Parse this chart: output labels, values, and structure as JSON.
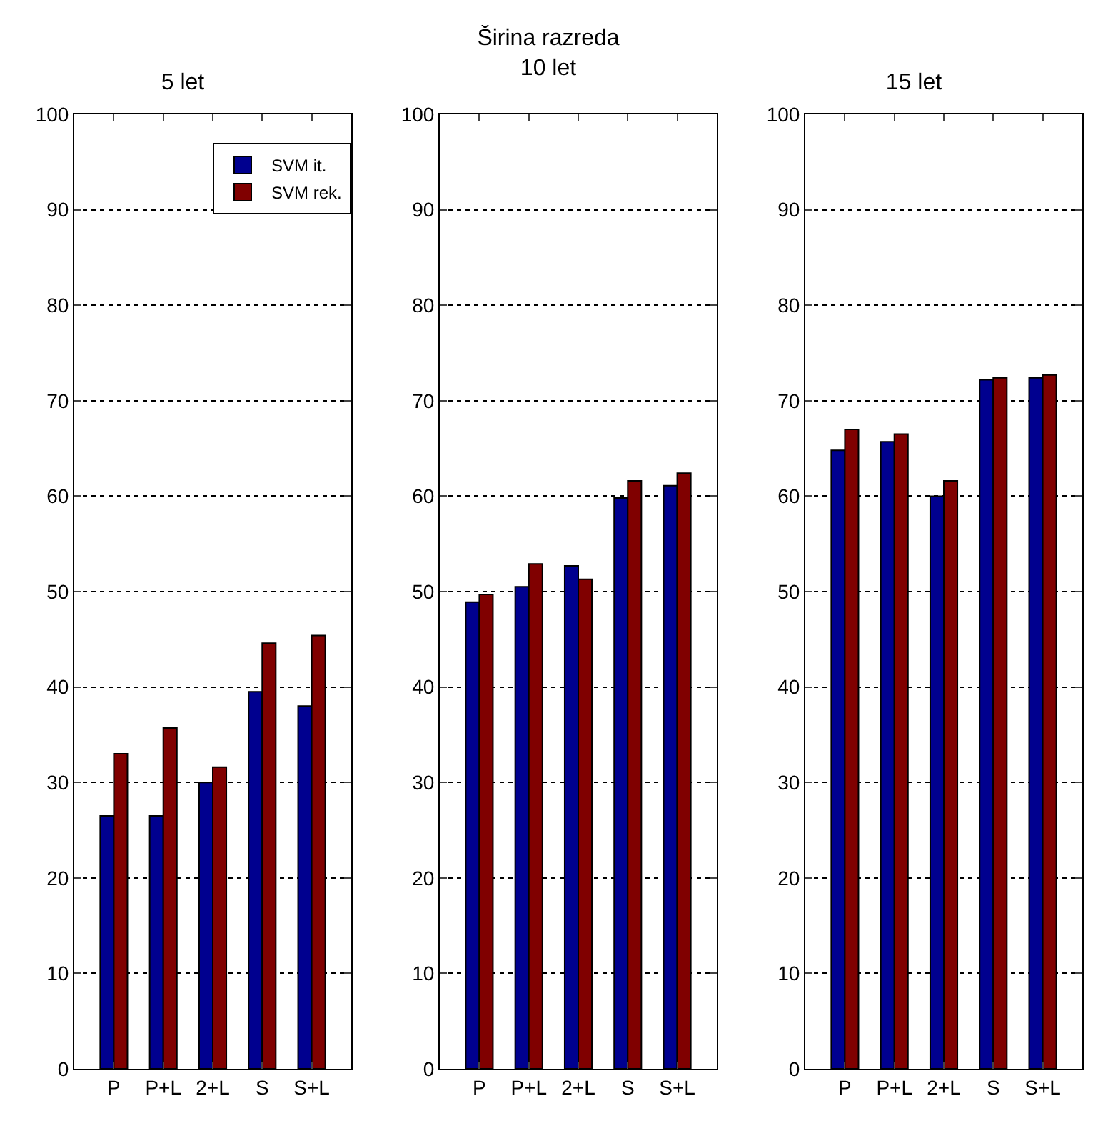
{
  "chart_data": [
    {
      "type": "bar",
      "title": "5 let",
      "categories": [
        "P",
        "P+L",
        "2+L",
        "S",
        "S+L"
      ],
      "series": [
        {
          "name": "SVM it.",
          "color": "#00008f",
          "values": [
            26.5,
            26.5,
            30,
            39.5,
            38
          ]
        },
        {
          "name": "SVM rek.",
          "color": "#800000",
          "values": [
            33,
            35.7,
            31.6,
            44.6,
            45.4
          ]
        }
      ],
      "ylim": [
        0,
        100
      ],
      "yticks": [
        0,
        10,
        20,
        30,
        40,
        50,
        60,
        70,
        80,
        90,
        100
      ],
      "grid": "y",
      "legend": "top right"
    },
    {
      "type": "bar",
      "title": "Širina razreda",
      "subtitle": "10 let",
      "categories": [
        "P",
        "P+L",
        "2+L",
        "S",
        "S+L"
      ],
      "series": [
        {
          "color": "#00008f",
          "values": [
            48.9,
            50.5,
            52.7,
            59.8,
            61.1
          ]
        },
        {
          "color": "#800000",
          "values": [
            49.7,
            52.9,
            51.3,
            61.6,
            62.4
          ]
        }
      ],
      "ylim": [
        0,
        100
      ],
      "yticks": [
        0,
        10,
        20,
        30,
        40,
        50,
        60,
        70,
        80,
        90,
        100
      ],
      "grid": "y"
    },
    {
      "type": "bar",
      "title": "15 let",
      "categories": [
        "P",
        "P+L",
        "2+L",
        "S",
        "S+L"
      ],
      "series": [
        {
          "color": "#00008f",
          "values": [
            64.8,
            65.7,
            60,
            72.2,
            72.4
          ]
        },
        {
          "color": "#800000",
          "values": [
            67,
            66.5,
            61.6,
            72.4,
            72.7
          ]
        }
      ],
      "ylim": [
        0,
        100
      ],
      "yticks": [
        0,
        10,
        20,
        30,
        40,
        50,
        60,
        70,
        80,
        90,
        100
      ],
      "grid": "y"
    }
  ]
}
